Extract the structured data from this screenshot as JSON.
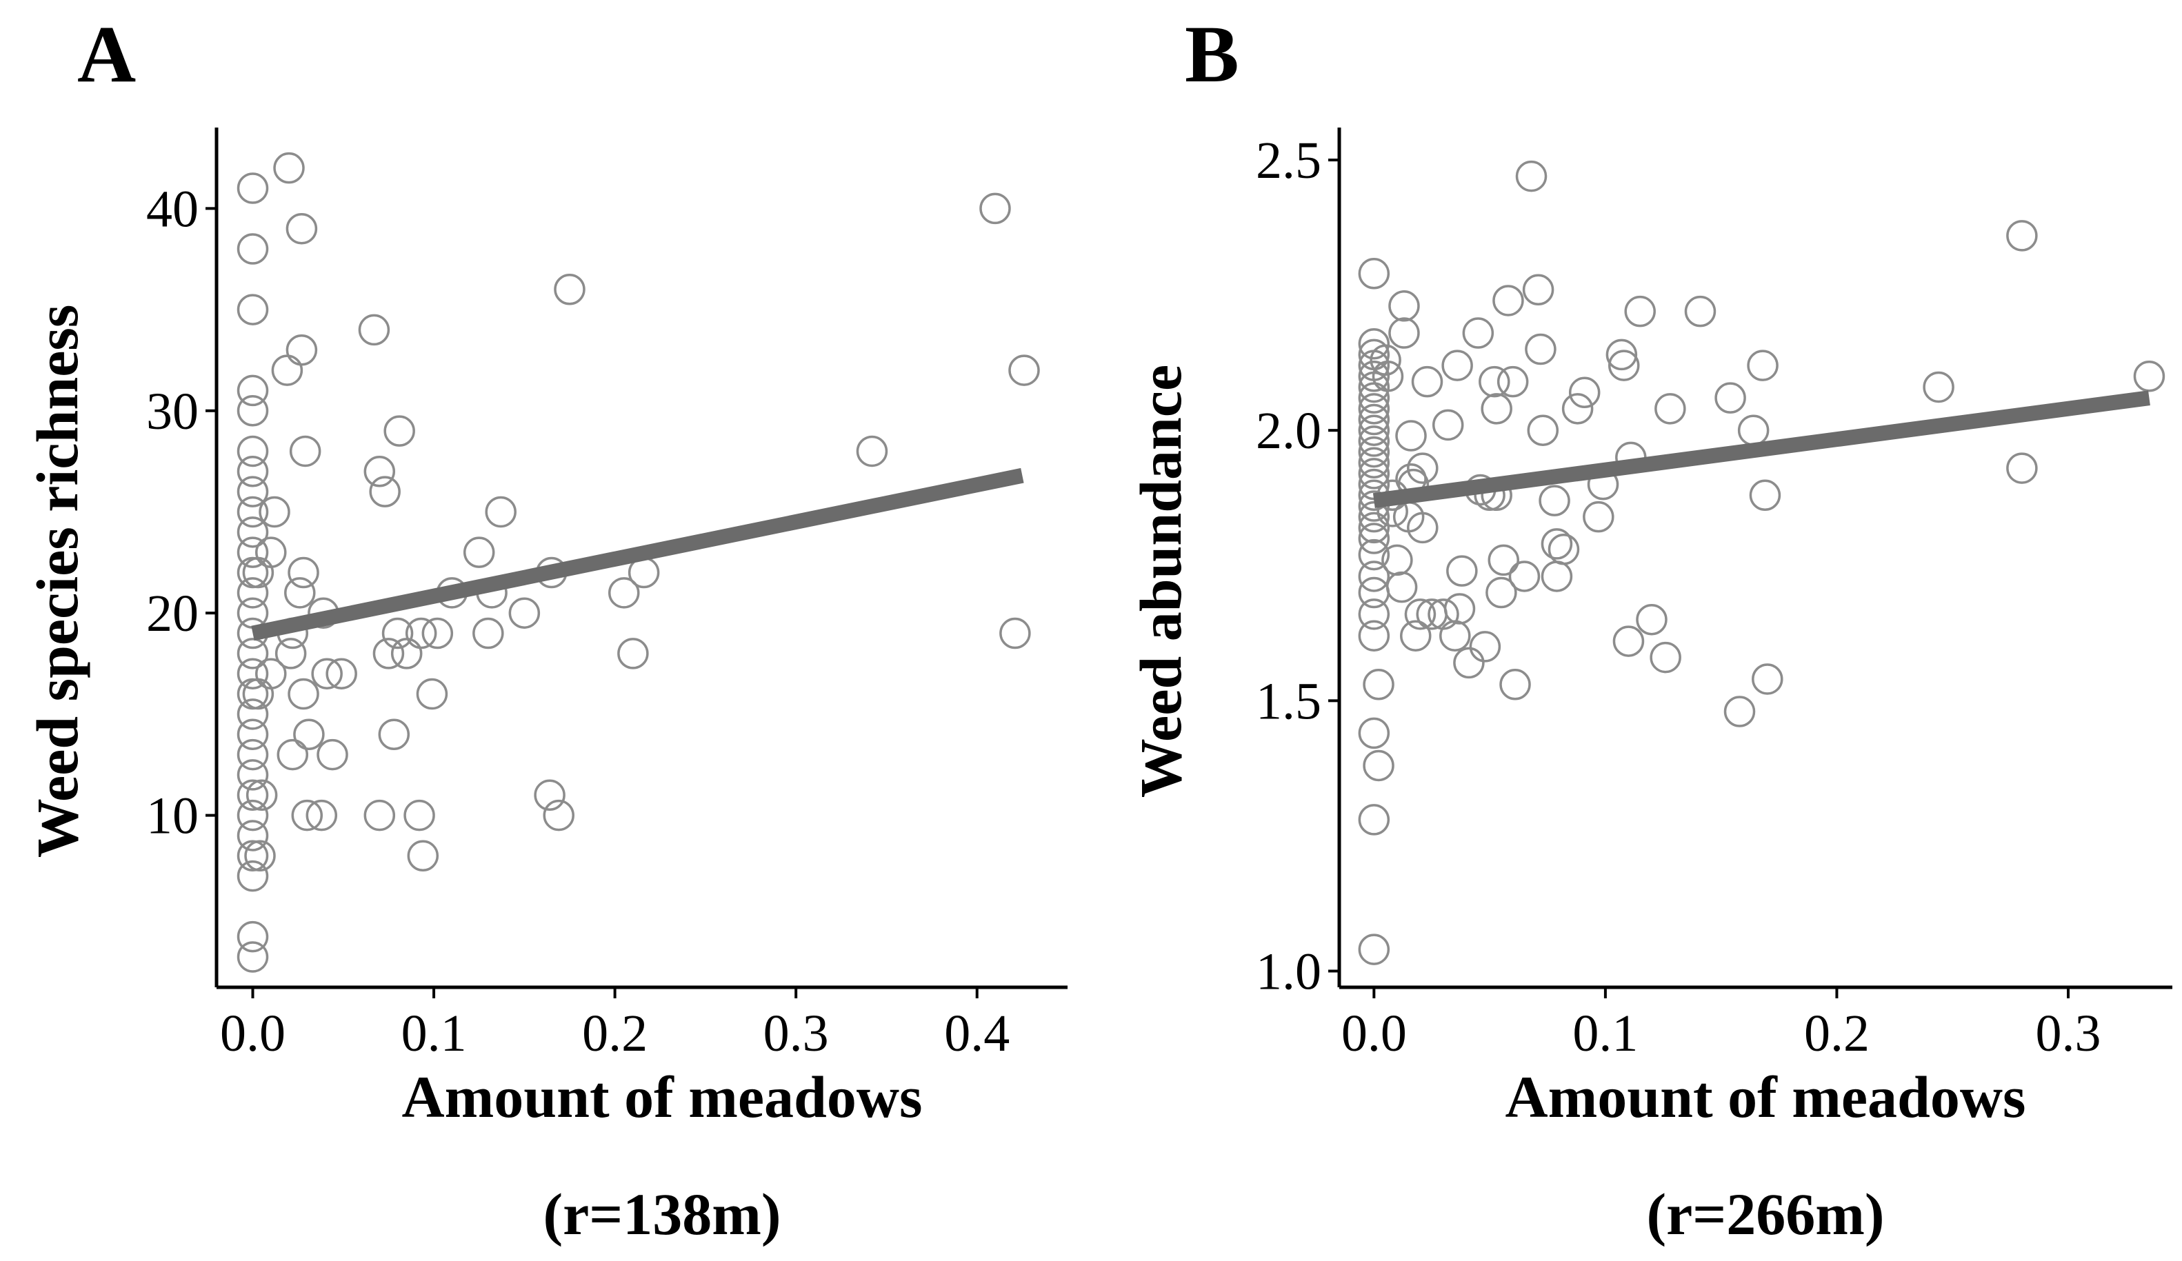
{
  "chart_data": [
    {
      "type": "scatter",
      "panel_label": "A",
      "xlabel": "Amount of meadows",
      "subtitle": "(r=138m)",
      "ylabel": "Weed species richness",
      "xlim": [
        -0.02,
        0.45
      ],
      "ylim": [
        1.5,
        44
      ],
      "x_ticks": [
        0.0,
        0.1,
        0.2,
        0.3,
        0.4
      ],
      "x_tick_labels": [
        "0.0",
        "0.1",
        "0.2",
        "0.3",
        "0.4"
      ],
      "y_ticks": [
        10,
        20,
        30,
        40
      ],
      "y_tick_labels": [
        "10",
        "20",
        "30",
        "40"
      ],
      "marker_color": "#8c8c8c",
      "line_color": "#6b6b6b",
      "fit_line": {
        "x": [
          0.0,
          0.425
        ],
        "y": [
          19.0,
          26.8
        ]
      },
      "points": [
        [
          0.0,
          41
        ],
        [
          0.0,
          38
        ],
        [
          0.0,
          35
        ],
        [
          0.0,
          31
        ],
        [
          0.0,
          30
        ],
        [
          0.0,
          28
        ],
        [
          0.0,
          27
        ],
        [
          0.0,
          26
        ],
        [
          0.0,
          25
        ],
        [
          0.0,
          24
        ],
        [
          0.0,
          23
        ],
        [
          0.0,
          22
        ],
        [
          0.0,
          21
        ],
        [
          0.0,
          20
        ],
        [
          0.0,
          19
        ],
        [
          0.0,
          18
        ],
        [
          0.0,
          17
        ],
        [
          0.0,
          16
        ],
        [
          0.0,
          15
        ],
        [
          0.0,
          14
        ],
        [
          0.0,
          13
        ],
        [
          0.0,
          12
        ],
        [
          0.0,
          11
        ],
        [
          0.0,
          10
        ],
        [
          0.0,
          9
        ],
        [
          0.0,
          8
        ],
        [
          0.0,
          7
        ],
        [
          0.0,
          4
        ],
        [
          0.0,
          3
        ],
        [
          0.003,
          22
        ],
        [
          0.003,
          16
        ],
        [
          0.004,
          8
        ],
        [
          0.005,
          11
        ],
        [
          0.01,
          17
        ],
        [
          0.01,
          23
        ],
        [
          0.012,
          25
        ],
        [
          0.019,
          32
        ],
        [
          0.02,
          42
        ],
        [
          0.021,
          18
        ],
        [
          0.022,
          13
        ],
        [
          0.022,
          19
        ],
        [
          0.026,
          21
        ],
        [
          0.027,
          39
        ],
        [
          0.027,
          33
        ],
        [
          0.028,
          22
        ],
        [
          0.028,
          16
        ],
        [
          0.029,
          28
        ],
        [
          0.03,
          10
        ],
        [
          0.031,
          14
        ],
        [
          0.038,
          10
        ],
        [
          0.039,
          20
        ],
        [
          0.041,
          17
        ],
        [
          0.044,
          13
        ],
        [
          0.049,
          17
        ],
        [
          0.067,
          34
        ],
        [
          0.07,
          27
        ],
        [
          0.07,
          10
        ],
        [
          0.073,
          26
        ],
        [
          0.075,
          18
        ],
        [
          0.078,
          14
        ],
        [
          0.08,
          19
        ],
        [
          0.081,
          29
        ],
        [
          0.085,
          18
        ],
        [
          0.092,
          10
        ],
        [
          0.093,
          19
        ],
        [
          0.094,
          8
        ],
        [
          0.099,
          16
        ],
        [
          0.102,
          19
        ],
        [
          0.11,
          21
        ],
        [
          0.125,
          23
        ],
        [
          0.13,
          19
        ],
        [
          0.132,
          21
        ],
        [
          0.137,
          25
        ],
        [
          0.15,
          20
        ],
        [
          0.164,
          11
        ],
        [
          0.165,
          22
        ],
        [
          0.169,
          10
        ],
        [
          0.175,
          36
        ],
        [
          0.205,
          21
        ],
        [
          0.21,
          18
        ],
        [
          0.216,
          22
        ],
        [
          0.342,
          28
        ],
        [
          0.41,
          40
        ],
        [
          0.421,
          19
        ],
        [
          0.426,
          32
        ]
      ]
    },
    {
      "type": "scatter",
      "panel_label": "B",
      "xlabel": "Amount of meadows",
      "subtitle": "(r=266m)",
      "ylabel": "Weed abundance",
      "xlim": [
        -0.015,
        0.345
      ],
      "ylim": [
        0.97,
        2.56
      ],
      "x_ticks": [
        0.0,
        0.1,
        0.2,
        0.3
      ],
      "x_tick_labels": [
        "0.0",
        "0.1",
        "0.2",
        "0.3"
      ],
      "y_ticks": [
        1.0,
        1.5,
        2.0,
        2.5
      ],
      "y_tick_labels": [
        "1.0",
        "1.5",
        "2.0",
        "2.5"
      ],
      "marker_color": "#8c8c8c",
      "line_color": "#6b6b6b",
      "fit_line": {
        "x": [
          0.0,
          0.335
        ],
        "y": [
          1.87,
          2.06
        ]
      },
      "points": [
        [
          0.0,
          2.29
        ],
        [
          0.0,
          2.16
        ],
        [
          0.0,
          2.14
        ],
        [
          0.0,
          2.12
        ],
        [
          0.0,
          2.1
        ],
        [
          0.0,
          2.08
        ],
        [
          0.0,
          2.06
        ],
        [
          0.0,
          2.04
        ],
        [
          0.0,
          2.02
        ],
        [
          0.0,
          2.0
        ],
        [
          0.0,
          1.98
        ],
        [
          0.0,
          1.96
        ],
        [
          0.0,
          1.94
        ],
        [
          0.0,
          1.92
        ],
        [
          0.0,
          1.9
        ],
        [
          0.0,
          1.88
        ],
        [
          0.0,
          1.86
        ],
        [
          0.0,
          1.84
        ],
        [
          0.0,
          1.82
        ],
        [
          0.0,
          1.8
        ],
        [
          0.0,
          1.77
        ],
        [
          0.0,
          1.73
        ],
        [
          0.0,
          1.7
        ],
        [
          0.0,
          1.66
        ],
        [
          0.0,
          1.62
        ],
        [
          0.0,
          1.44
        ],
        [
          0.0,
          1.28
        ],
        [
          0.0,
          1.04
        ],
        [
          0.002,
          1.53
        ],
        [
          0.002,
          1.38
        ],
        [
          0.005,
          2.13
        ],
        [
          0.006,
          2.1
        ],
        [
          0.008,
          1.88
        ],
        [
          0.008,
          1.85
        ],
        [
          0.01,
          1.76
        ],
        [
          0.012,
          1.71
        ],
        [
          0.013,
          2.23
        ],
        [
          0.013,
          2.18
        ],
        [
          0.015,
          1.84
        ],
        [
          0.016,
          1.99
        ],
        [
          0.016,
          1.91
        ],
        [
          0.017,
          1.9
        ],
        [
          0.018,
          1.62
        ],
        [
          0.02,
          1.66
        ],
        [
          0.021,
          1.93
        ],
        [
          0.021,
          1.82
        ],
        [
          0.023,
          2.09
        ],
        [
          0.025,
          1.66
        ],
        [
          0.03,
          1.66
        ],
        [
          0.032,
          2.01
        ],
        [
          0.035,
          1.62
        ],
        [
          0.036,
          2.12
        ],
        [
          0.037,
          1.67
        ],
        [
          0.038,
          1.74
        ],
        [
          0.041,
          1.57
        ],
        [
          0.045,
          2.18
        ],
        [
          0.046,
          1.89
        ],
        [
          0.048,
          1.6
        ],
        [
          0.05,
          1.88
        ],
        [
          0.052,
          2.09
        ],
        [
          0.053,
          1.88
        ],
        [
          0.053,
          2.04
        ],
        [
          0.055,
          1.7
        ],
        [
          0.056,
          1.76
        ],
        [
          0.058,
          2.24
        ],
        [
          0.06,
          2.09
        ],
        [
          0.061,
          1.53
        ],
        [
          0.065,
          1.73
        ],
        [
          0.068,
          2.47
        ],
        [
          0.071,
          2.26
        ],
        [
          0.072,
          2.15
        ],
        [
          0.073,
          2.0
        ],
        [
          0.078,
          1.87
        ],
        [
          0.079,
          1.79
        ],
        [
          0.079,
          1.73
        ],
        [
          0.082,
          1.78
        ],
        [
          0.088,
          2.04
        ],
        [
          0.091,
          2.07
        ],
        [
          0.097,
          1.84
        ],
        [
          0.099,
          1.9
        ],
        [
          0.107,
          2.14
        ],
        [
          0.108,
          2.12
        ],
        [
          0.11,
          1.61
        ],
        [
          0.111,
          1.95
        ],
        [
          0.115,
          2.22
        ],
        [
          0.12,
          1.65
        ],
        [
          0.126,
          1.58
        ],
        [
          0.128,
          2.04
        ],
        [
          0.141,
          2.22
        ],
        [
          0.154,
          2.06
        ],
        [
          0.158,
          1.48
        ],
        [
          0.164,
          2.0
        ],
        [
          0.168,
          2.12
        ],
        [
          0.169,
          1.88
        ],
        [
          0.17,
          1.54
        ],
        [
          0.244,
          2.08
        ],
        [
          0.28,
          2.36
        ],
        [
          0.28,
          1.93
        ],
        [
          0.335,
          2.1
        ]
      ]
    }
  ]
}
